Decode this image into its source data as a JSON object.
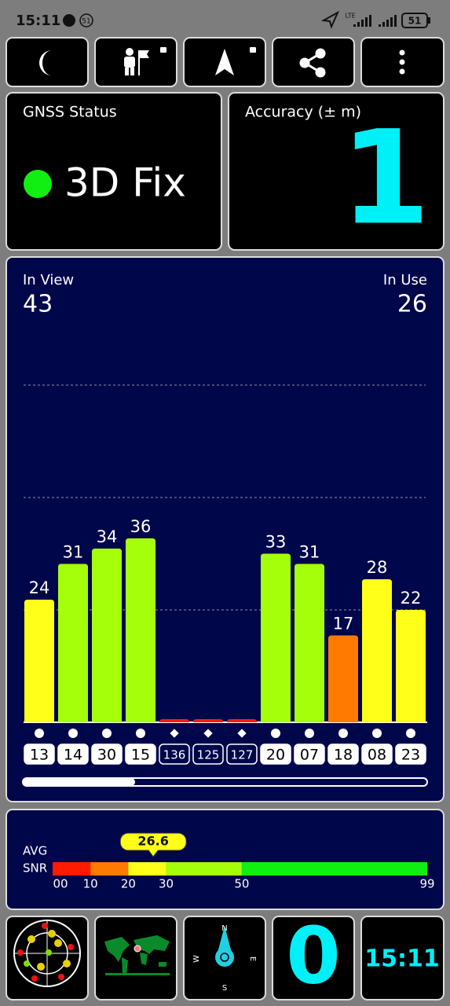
{
  "status_bar": {
    "time": "15:11",
    "notifications": "51",
    "network": "LTE",
    "battery": "51"
  },
  "gnss_status": {
    "title": "GNSS Status",
    "fix": "3D Fix"
  },
  "accuracy": {
    "title": "Accuracy (± m)",
    "value": 1
  },
  "satellites": {
    "in_view_label": "In View",
    "in_view": 43,
    "in_use_label": "In Use",
    "in_use": 26,
    "ids": [
      "13",
      "14",
      "30",
      "15",
      "136",
      "125",
      "127",
      "20",
      "07",
      "18",
      "08",
      "23"
    ],
    "markers": [
      "circle",
      "circle",
      "circle",
      "circle",
      "diamond",
      "diamond",
      "diamond",
      "circle",
      "circle",
      "circle",
      "circle",
      "circle"
    ],
    "values": [
      24,
      31,
      34,
      36,
      0,
      0,
      0,
      33,
      31,
      17,
      28,
      22
    ],
    "ylim": [
      0,
      70
    ],
    "gridlines": [
      22,
      44,
      66
    ]
  },
  "snr": {
    "label_1": "AVG",
    "label_2": "SNR",
    "average": 26.6,
    "xlim": [
      0,
      99
    ],
    "ticks": [
      {
        "value": 0,
        "label": "00"
      },
      10,
      20,
      30,
      50,
      99
    ],
    "colors": [
      "#ff1a00",
      "#ff7a00",
      "#ffff1a",
      "#a6ff0a",
      "#11ee11"
    ]
  },
  "bottom_tiles": {
    "compass": {
      "n": "N",
      "e": "E",
      "s": "S",
      "w": "W"
    },
    "speed": 0,
    "clock": "15:11"
  }
}
